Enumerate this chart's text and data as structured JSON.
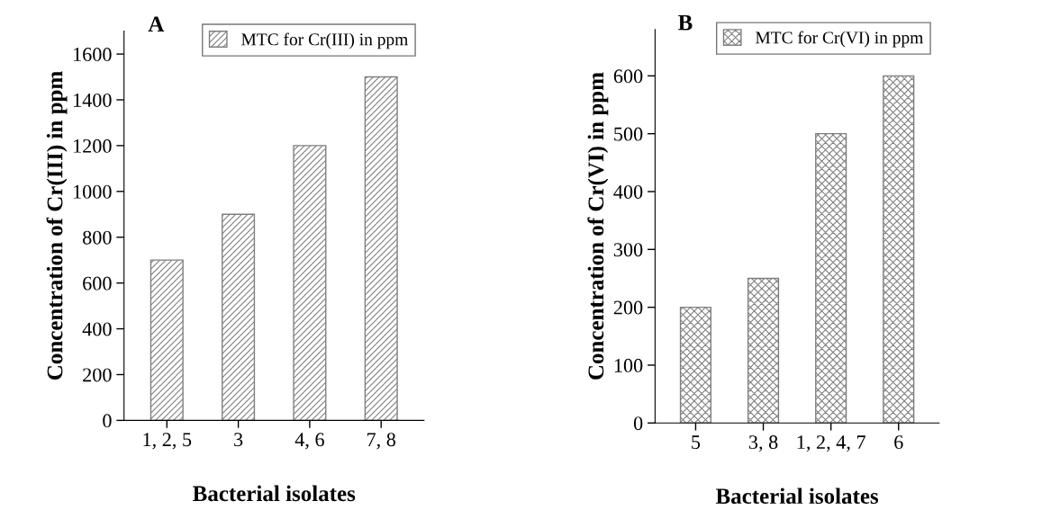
{
  "chart_data": [
    {
      "type": "bar",
      "title": "A",
      "xlabel": "Bacterial isolates",
      "ylabel": "Concentration of Cr(III) in ppm",
      "categories": [
        "1, 2, 5",
        "3",
        "4, 6",
        "7, 8"
      ],
      "series": [
        {
          "name": "MTC for Cr(III) in ppm",
          "color": "#7f7f7f",
          "values": [
            700,
            900,
            1200,
            1500
          ]
        }
      ],
      "ylim": [
        0,
        1700
      ],
      "yticks": [
        0,
        200,
        400,
        600,
        800,
        1000,
        1200,
        1400,
        1600
      ],
      "grid": false,
      "legend": "top right"
    },
    {
      "type": "bar",
      "title": "B",
      "xlabel": "Bacterial isolates",
      "ylabel": "Concentration of Cr(VI) in ppm",
      "categories": [
        "5",
        "3, 8",
        "1, 2, 4, 7",
        "6"
      ],
      "series": [
        {
          "name": "MTC for Cr(VI) in ppm",
          "color": "#7f7f7f",
          "values": [
            200,
            250,
            500,
            600
          ]
        }
      ],
      "ylim": [
        0,
        680
      ],
      "yticks": [
        0,
        100,
        200,
        300,
        400,
        500,
        600
      ],
      "grid": false,
      "legend": "top right"
    }
  ]
}
